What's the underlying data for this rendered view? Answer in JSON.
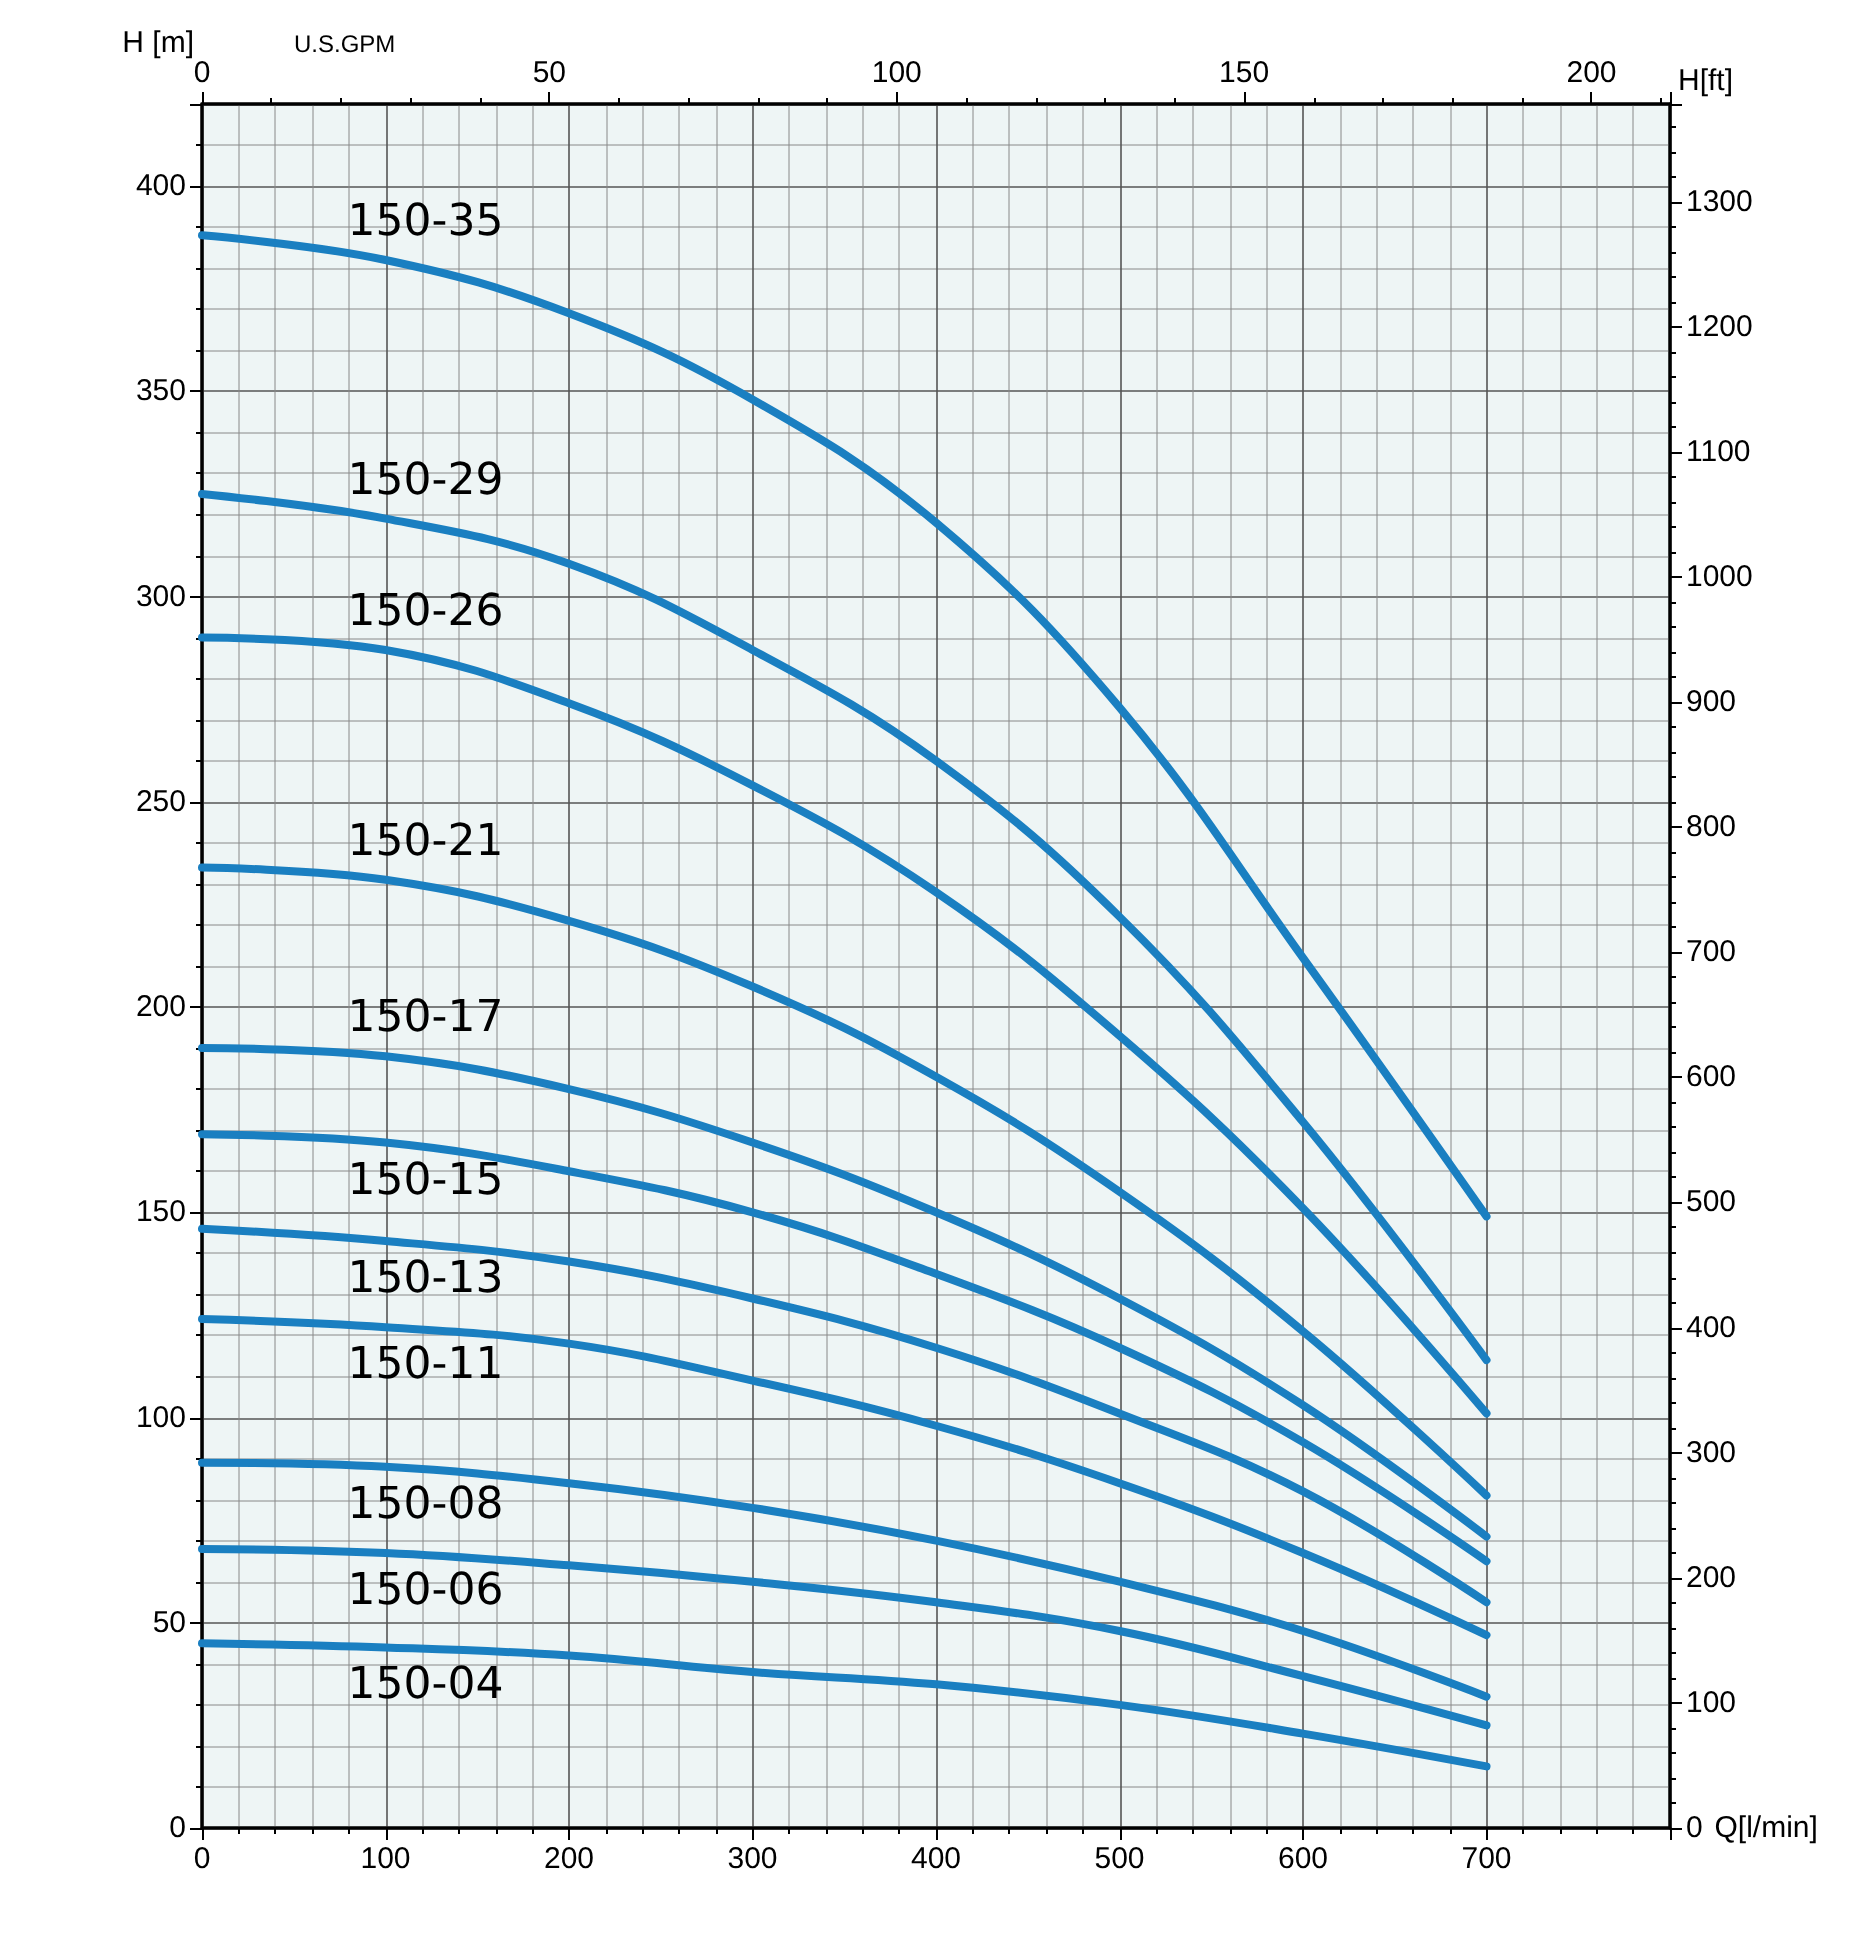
{
  "chart_data": {
    "type": "line",
    "xlabel": "Q[l/min]",
    "ylabel": "H [m]",
    "y2label": "H[ft]",
    "x2label": "U.S.GPM",
    "x": [
      0,
      100,
      200,
      300,
      400,
      500,
      600,
      700
    ],
    "xlim": [
      0,
      800
    ],
    "xticks": [
      0,
      100,
      200,
      300,
      400,
      500,
      600,
      700
    ],
    "ylim": [
      0,
      420
    ],
    "yticks": [
      0,
      50,
      100,
      150,
      200,
      250,
      300,
      350,
      400
    ],
    "y2lim": [
      0,
      1378
    ],
    "y2ticks": [
      0,
      100,
      200,
      300,
      400,
      500,
      600,
      700,
      800,
      900,
      1000,
      1100,
      1200,
      1300
    ],
    "x2lim": [
      0,
      211.3
    ],
    "x2ticks": [
      0,
      50,
      100,
      150,
      200
    ],
    "grid": true,
    "legend": false,
    "line_style": "solid",
    "marker": "none",
    "series": [
      {
        "name": "150-35",
        "color": "#1a7fc1",
        "values": [
          388,
          382,
          369,
          348,
          318,
          273,
          212,
          149
        ]
      },
      {
        "name": "150-29",
        "color": "#1a7fc1",
        "values": [
          325,
          319,
          308,
          287,
          260,
          222,
          172,
          114
        ]
      },
      {
        "name": "150-26",
        "color": "#1a7fc1",
        "values": [
          290,
          287,
          274,
          254,
          228,
          193,
          151,
          101
        ]
      },
      {
        "name": "150-21",
        "color": "#1a7fc1",
        "values": [
          234,
          231,
          221,
          205,
          183,
          155,
          121,
          81
        ]
      },
      {
        "name": "150-17",
        "color": "#1a7fc1",
        "values": [
          190,
          188,
          180,
          167,
          150,
          129,
          103,
          71
        ]
      },
      {
        "name": "150-15",
        "color": "#1a7fc1",
        "values": [
          169,
          167,
          160,
          150,
          135,
          117,
          94,
          65
        ]
      },
      {
        "name": "150-13",
        "color": "#1a7fc1",
        "values": [
          146,
          143,
          138,
          129,
          117,
          101,
          82,
          55
        ]
      },
      {
        "name": "150-11",
        "color": "#1a7fc1",
        "values": [
          124,
          122,
          118,
          109,
          98,
          84,
          67,
          47
        ]
      },
      {
        "name": "150-08",
        "color": "#1a7fc1",
        "values": [
          89,
          88,
          84,
          78,
          70,
          60,
          48,
          32
        ]
      },
      {
        "name": "150-06",
        "color": "#1a7fc1",
        "values": [
          68,
          67,
          64,
          60,
          55,
          48,
          37,
          25
        ]
      },
      {
        "name": "150-04",
        "color": "#1a7fc1",
        "values": [
          45,
          44,
          42,
          38,
          35,
          30,
          23,
          15
        ]
      }
    ]
  }
}
